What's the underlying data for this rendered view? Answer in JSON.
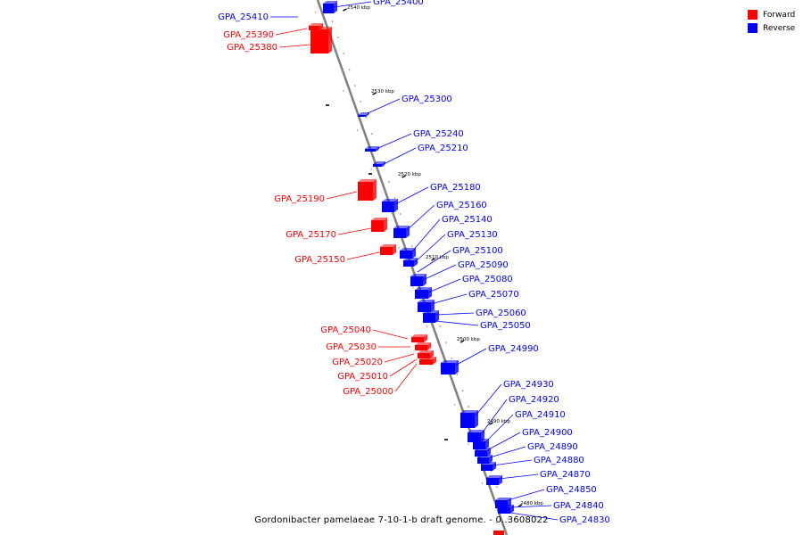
{
  "title": "Gordonibacter pamelaeae 7-10-1-b draft genome. - 0..3608022",
  "colors": {
    "forward": "#ff0000",
    "reverse": "#0000ff",
    "backbone": "#808080"
  },
  "legend": [
    {
      "label": "Forward",
      "strand": "forward"
    },
    {
      "label": "Reverse",
      "strand": "reverse"
    }
  ],
  "ticks": [
    "2540 kbp",
    "2530 kbp",
    "2520 kbp",
    "2510 kbp",
    "2500 kbp",
    "2490 kbp",
    "2480 kbp"
  ],
  "genes": [
    {
      "name": "GPA_25400",
      "strand": "reverse"
    },
    {
      "name": "GPA_25410",
      "strand": "reverse"
    },
    {
      "name": "GPA_25390",
      "strand": "forward"
    },
    {
      "name": "GPA_25380",
      "strand": "forward"
    },
    {
      "name": "GPA_25300",
      "strand": "reverse"
    },
    {
      "name": "GPA_25240",
      "strand": "reverse"
    },
    {
      "name": "GPA_25210",
      "strand": "reverse"
    },
    {
      "name": "GPA_25190",
      "strand": "forward"
    },
    {
      "name": "GPA_25180",
      "strand": "reverse"
    },
    {
      "name": "GPA_25160",
      "strand": "reverse"
    },
    {
      "name": "GPA_25140",
      "strand": "reverse"
    },
    {
      "name": "GPA_25170",
      "strand": "forward"
    },
    {
      "name": "GPA_25130",
      "strand": "reverse"
    },
    {
      "name": "GPA_25150",
      "strand": "forward"
    },
    {
      "name": "GPA_25100",
      "strand": "reverse"
    },
    {
      "name": "GPA_25090",
      "strand": "reverse"
    },
    {
      "name": "GPA_25080",
      "strand": "reverse"
    },
    {
      "name": "GPA_25070",
      "strand": "reverse"
    },
    {
      "name": "GPA_25060",
      "strand": "reverse"
    },
    {
      "name": "GPA_25050",
      "strand": "reverse"
    },
    {
      "name": "GPA_25040",
      "strand": "forward"
    },
    {
      "name": "GPA_25030",
      "strand": "forward"
    },
    {
      "name": "GPA_25020",
      "strand": "forward"
    },
    {
      "name": "GPA_25010",
      "strand": "forward"
    },
    {
      "name": "GPA_25000",
      "strand": "forward"
    },
    {
      "name": "GPA_24990",
      "strand": "reverse"
    },
    {
      "name": "GPA_24930",
      "strand": "reverse"
    },
    {
      "name": "GPA_24920",
      "strand": "reverse"
    },
    {
      "name": "GPA_24910",
      "strand": "reverse"
    },
    {
      "name": "GPA_24900",
      "strand": "reverse"
    },
    {
      "name": "GPA_24890",
      "strand": "reverse"
    },
    {
      "name": "GPA_24880",
      "strand": "reverse"
    },
    {
      "name": "GPA_24870",
      "strand": "reverse"
    },
    {
      "name": "GPA_24850",
      "strand": "reverse"
    },
    {
      "name": "GPA_24840",
      "strand": "reverse"
    },
    {
      "name": "GPA_24830",
      "strand": "reverse"
    }
  ]
}
